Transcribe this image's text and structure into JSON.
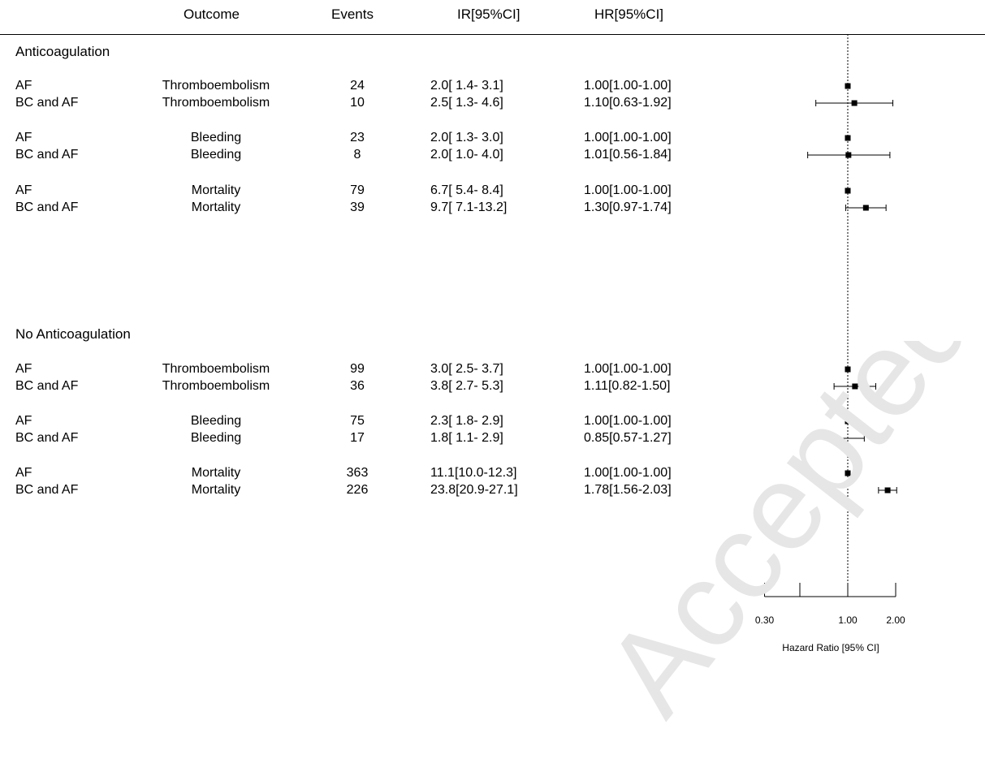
{
  "headers": {
    "outcome": "Outcome",
    "events": "Events",
    "ir": "IR[95%CI]",
    "hr": "HR[95%CI]"
  },
  "watermark": "Accepted Manuscript",
  "chart_data": {
    "type": "forest",
    "x_scale": "log",
    "xlabel": "Hazard Ratio [95% CI]",
    "xticks": [
      0.3,
      0.5,
      1.0,
      2.0
    ],
    "xtick_labels": [
      "0.30",
      "",
      "1.00",
      "2.00"
    ],
    "xlim": [
      0.3,
      2.0
    ],
    "reference_line": 1.0,
    "groups": [
      {
        "label": "Anticoagulation",
        "rows": [
          {
            "group": "AF",
            "outcome": "Thromboembolism",
            "events": "24",
            "ir": "2.0[ 1.4- 3.1]",
            "hr": "1.00[1.00-1.00]",
            "est": 1.0,
            "lo": 1.0,
            "hi": 1.0
          },
          {
            "group": "BC and AF",
            "outcome": "Thromboembolism",
            "events": "10",
            "ir": "2.5[ 1.3- 4.6]",
            "hr": "1.10[0.63-1.92]",
            "est": 1.1,
            "lo": 0.63,
            "hi": 1.92
          },
          {
            "group": "AF",
            "outcome": "Bleeding",
            "events": "23",
            "ir": "2.0[ 1.3- 3.0]",
            "hr": "1.00[1.00-1.00]",
            "est": 1.0,
            "lo": 1.0,
            "hi": 1.0
          },
          {
            "group": "BC and AF",
            "outcome": "Bleeding",
            "events": "8",
            "ir": "2.0[ 1.0- 4.0]",
            "hr": "1.01[0.56-1.84]",
            "est": 1.01,
            "lo": 0.56,
            "hi": 1.84
          },
          {
            "group": "AF",
            "outcome": "Mortality",
            "events": "79",
            "ir": "6.7[ 5.4- 8.4]",
            "hr": "1.00[1.00-1.00]",
            "est": 1.0,
            "lo": 1.0,
            "hi": 1.0
          },
          {
            "group": "BC and AF",
            "outcome": "Mortality",
            "events": "39",
            "ir": "9.7[ 7.1-13.2]",
            "hr": "1.30[0.97-1.74]",
            "est": 1.3,
            "lo": 0.97,
            "hi": 1.74
          }
        ]
      },
      {
        "label": "No Anticoagulation",
        "rows": [
          {
            "group": "AF",
            "outcome": "Thromboembolism",
            "events": "99",
            "ir": "3.0[ 2.5- 3.7]",
            "hr": "1.00[1.00-1.00]",
            "est": 1.0,
            "lo": 1.0,
            "hi": 1.0
          },
          {
            "group": "BC and AF",
            "outcome": "Thromboembolism",
            "events": "36",
            "ir": "3.8[ 2.7- 5.3]",
            "hr": "1.11[0.82-1.50]",
            "est": 1.11,
            "lo": 0.82,
            "hi": 1.5
          },
          {
            "group": "AF",
            "outcome": "Bleeding",
            "events": "75",
            "ir": "2.3[ 1.8- 2.9]",
            "hr": "1.00[1.00-1.00]",
            "est": 1.0,
            "lo": 1.0,
            "hi": 1.0
          },
          {
            "group": "BC and AF",
            "outcome": "Bleeding",
            "events": "17",
            "ir": "1.8[ 1.1- 2.9]",
            "hr": "0.85[0.57-1.27]",
            "est": 0.85,
            "lo": 0.57,
            "hi": 1.27
          },
          {
            "group": "AF",
            "outcome": "Mortality",
            "events": "363",
            "ir": "11.1[10.0-12.3]",
            "hr": "1.00[1.00-1.00]",
            "est": 1.0,
            "lo": 1.0,
            "hi": 1.0
          },
          {
            "group": "BC and AF",
            "outcome": "Mortality",
            "events": "226",
            "ir": "23.8[20.9-27.1]",
            "hr": "1.78[1.56-2.03]",
            "est": 1.78,
            "lo": 1.56,
            "hi": 2.03
          }
        ]
      }
    ]
  }
}
